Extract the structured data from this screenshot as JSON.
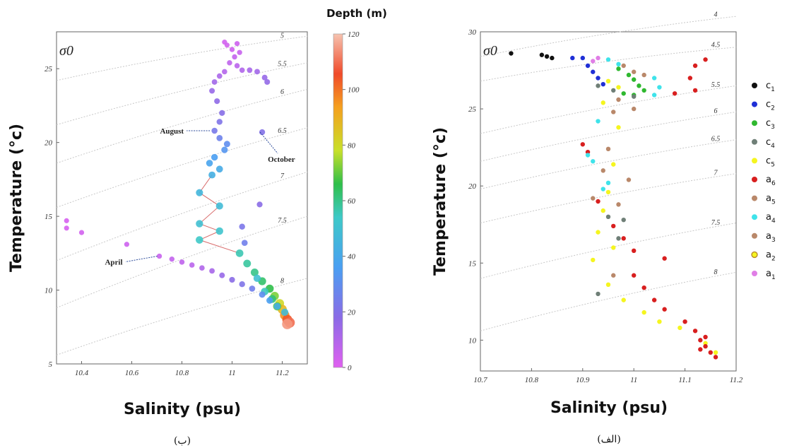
{
  "chart_data": [
    {
      "type": "scatter",
      "panel_caption": "(ب)",
      "xlabel": "Salinity (psu)",
      "ylabel": "Temperature (°c)",
      "sigma_label": "σ0",
      "xlim": [
        10.3,
        11.3
      ],
      "ylim": [
        5,
        27.5
      ],
      "x_ticks": [
        10.4,
        10.6,
        10.8,
        11,
        11.2
      ],
      "y_ticks": [
        5,
        10,
        15,
        20,
        25
      ],
      "colorbar": {
        "title": "Depth (m)",
        "min": 0,
        "max": 120,
        "ticks": [
          0,
          20,
          40,
          60,
          80,
          100,
          120
        ]
      },
      "isopycnals": [
        {
          "label": "5",
          "y_at_left": 24.2,
          "y_at_right": 27.2
        },
        {
          "label": "5.5",
          "y_at_left": 21.2,
          "y_at_right": 25.4
        },
        {
          "label": "6",
          "y_at_left": 18.6,
          "y_at_right": 23.6
        },
        {
          "label": "6.5",
          "y_at_left": 15.6,
          "y_at_right": 21.0
        },
        {
          "label": "7",
          "y_at_left": 12.0,
          "y_at_right": 18.0
        },
        {
          "label": "7.5",
          "y_at_left": 8.8,
          "y_at_right": 15.0
        },
        {
          "label": "8",
          "y_at_left": 5.6,
          "y_at_right": 10.8
        }
      ],
      "annotations": [
        {
          "text": "August",
          "x": 10.92,
          "y": 20.8
        },
        {
          "text": "October",
          "x": 11.12,
          "y": 20.7
        },
        {
          "text": "April",
          "x": 10.71,
          "y": 12.3
        }
      ],
      "points": [
        {
          "x": 10.97,
          "y": 26.8,
          "d": 3
        },
        {
          "x": 10.98,
          "y": 26.6,
          "d": 3
        },
        {
          "x": 11.0,
          "y": 26.3,
          "d": 4
        },
        {
          "x": 11.02,
          "y": 26.7,
          "d": 4
        },
        {
          "x": 11.03,
          "y": 26.1,
          "d": 5
        },
        {
          "x": 11.01,
          "y": 25.8,
          "d": 6
        },
        {
          "x": 10.99,
          "y": 25.4,
          "d": 7
        },
        {
          "x": 11.02,
          "y": 25.2,
          "d": 8
        },
        {
          "x": 11.04,
          "y": 24.9,
          "d": 10
        },
        {
          "x": 11.07,
          "y": 24.9,
          "d": 12
        },
        {
          "x": 11.1,
          "y": 24.8,
          "d": 13
        },
        {
          "x": 11.13,
          "y": 24.4,
          "d": 15
        },
        {
          "x": 11.14,
          "y": 24.1,
          "d": 16
        },
        {
          "x": 10.97,
          "y": 24.8,
          "d": 9
        },
        {
          "x": 10.95,
          "y": 24.5,
          "d": 11
        },
        {
          "x": 10.93,
          "y": 24.1,
          "d": 13
        },
        {
          "x": 10.92,
          "y": 23.5,
          "d": 15
        },
        {
          "x": 10.94,
          "y": 22.8,
          "d": 17
        },
        {
          "x": 10.96,
          "y": 22.0,
          "d": 19
        },
        {
          "x": 10.95,
          "y": 21.4,
          "d": 21
        },
        {
          "x": 10.93,
          "y": 20.8,
          "d": 23
        },
        {
          "x": 10.95,
          "y": 20.3,
          "d": 26
        },
        {
          "x": 10.98,
          "y": 19.9,
          "d": 30
        },
        {
          "x": 10.97,
          "y": 19.5,
          "d": 33
        },
        {
          "x": 10.93,
          "y": 19.0,
          "d": 36
        },
        {
          "x": 10.91,
          "y": 18.6,
          "d": 38
        },
        {
          "x": 10.95,
          "y": 18.2,
          "d": 41
        },
        {
          "x": 10.92,
          "y": 17.8,
          "d": 43
        },
        {
          "x": 10.87,
          "y": 16.6,
          "d": 46
        },
        {
          "x": 10.95,
          "y": 15.7,
          "d": 48
        },
        {
          "x": 10.87,
          "y": 14.5,
          "d": 50
        },
        {
          "x": 10.95,
          "y": 14.0,
          "d": 52
        },
        {
          "x": 10.87,
          "y": 13.4,
          "d": 54
        },
        {
          "x": 11.03,
          "y": 12.5,
          "d": 56
        },
        {
          "x": 11.06,
          "y": 11.8,
          "d": 58
        },
        {
          "x": 11.09,
          "y": 11.2,
          "d": 60
        },
        {
          "x": 11.12,
          "y": 10.6,
          "d": 63
        },
        {
          "x": 11.15,
          "y": 10.1,
          "d": 66
        },
        {
          "x": 11.17,
          "y": 9.6,
          "d": 72
        },
        {
          "x": 11.19,
          "y": 9.1,
          "d": 80
        },
        {
          "x": 11.2,
          "y": 8.7,
          "d": 88
        },
        {
          "x": 11.21,
          "y": 8.3,
          "d": 96
        },
        {
          "x": 11.22,
          "y": 8.0,
          "d": 104
        },
        {
          "x": 11.23,
          "y": 7.8,
          "d": 110
        },
        {
          "x": 11.22,
          "y": 7.7,
          "d": 115
        },
        {
          "x": 11.1,
          "y": 10.8,
          "d": 50
        },
        {
          "x": 11.13,
          "y": 9.9,
          "d": 55
        },
        {
          "x": 11.16,
          "y": 9.4,
          "d": 62
        },
        {
          "x": 11.18,
          "y": 8.9,
          "d": 70
        },
        {
          "x": 11.05,
          "y": 13.2,
          "d": 25
        },
        {
          "x": 11.04,
          "y": 14.3,
          "d": 22
        },
        {
          "x": 11.11,
          "y": 15.8,
          "d": 18
        },
        {
          "x": 11.12,
          "y": 20.7,
          "d": 20
        },
        {
          "x": 10.34,
          "y": 14.7,
          "d": 2
        },
        {
          "x": 10.34,
          "y": 14.2,
          "d": 2
        },
        {
          "x": 10.4,
          "y": 13.9,
          "d": 3
        },
        {
          "x": 10.58,
          "y": 13.1,
          "d": 4
        },
        {
          "x": 10.71,
          "y": 12.3,
          "d": 5
        },
        {
          "x": 10.76,
          "y": 12.1,
          "d": 6
        },
        {
          "x": 10.8,
          "y": 11.9,
          "d": 7
        },
        {
          "x": 10.84,
          "y": 11.7,
          "d": 8
        },
        {
          "x": 10.88,
          "y": 11.5,
          "d": 10
        },
        {
          "x": 10.92,
          "y": 11.3,
          "d": 12
        },
        {
          "x": 10.96,
          "y": 11.0,
          "d": 15
        },
        {
          "x": 11.0,
          "y": 10.7,
          "d": 18
        },
        {
          "x": 11.04,
          "y": 10.4,
          "d": 21
        },
        {
          "x": 11.08,
          "y": 10.1,
          "d": 25
        },
        {
          "x": 11.12,
          "y": 9.7,
          "d": 30
        },
        {
          "x": 11.15,
          "y": 9.3,
          "d": 36
        },
        {
          "x": 11.18,
          "y": 8.9,
          "d": 42
        },
        {
          "x": 11.21,
          "y": 8.5,
          "d": 48
        }
      ],
      "line_path": [
        {
          "x": 10.92,
          "y": 17.8
        },
        {
          "x": 10.87,
          "y": 16.6
        },
        {
          "x": 10.95,
          "y": 15.7
        },
        {
          "x": 10.87,
          "y": 14.5
        },
        {
          "x": 10.95,
          "y": 14.0
        },
        {
          "x": 10.87,
          "y": 13.4
        },
        {
          "x": 11.03,
          "y": 12.5
        }
      ]
    },
    {
      "type": "scatter",
      "panel_caption": "(الف)",
      "xlabel": "Salinity (psu)",
      "ylabel": "Temperature (°c)",
      "sigma_label": "σ0",
      "xlim": [
        10.7,
        11.2
      ],
      "ylim": [
        8,
        30
      ],
      "x_ticks": [
        10.7,
        10.8,
        10.9,
        11,
        11.1,
        11.2
      ],
      "y_ticks": [
        10,
        15,
        20,
        25,
        30
      ],
      "isopycnals": [
        {
          "label": "4",
          "y_at_left": 28.4,
          "y_at_right": 31.0
        },
        {
          "label": "4.5",
          "y_at_left": 26.8,
          "y_at_right": 29.0
        },
        {
          "label": "5.5",
          "y_at_left": 23.4,
          "y_at_right": 26.5
        },
        {
          "label": "6",
          "y_at_left": 21.6,
          "y_at_right": 24.8
        },
        {
          "label": "6.5",
          "y_at_left": 19.8,
          "y_at_right": 23.0
        },
        {
          "label": "7",
          "y_at_left": 17.6,
          "y_at_right": 20.8
        },
        {
          "label": "7.5",
          "y_at_left": 14.0,
          "y_at_right": 17.6
        },
        {
          "label": "8",
          "y_at_left": 10.6,
          "y_at_right": 14.4
        }
      ],
      "legend": [
        {
          "label": "c",
          "sub": "1",
          "color": "#111111",
          "hollow": false
        },
        {
          "label": "c",
          "sub": "2",
          "color": "#1f2fd6",
          "hollow": false
        },
        {
          "label": "c",
          "sub": "3",
          "color": "#2fb82f",
          "hollow": false
        },
        {
          "label": "c",
          "sub": "4",
          "color": "#6f7f77",
          "hollow": false
        },
        {
          "label": "c",
          "sub": "5",
          "color": "#f5f51f",
          "hollow": false
        },
        {
          "label": "a",
          "sub": "6",
          "color": "#d81f1f",
          "hollow": false
        },
        {
          "label": "a",
          "sub": "5",
          "color": "#b9886a",
          "hollow": false
        },
        {
          "label": "a",
          "sub": "4",
          "color": "#3fe3ea",
          "hollow": false
        },
        {
          "label": "a",
          "sub": "3",
          "color": "#b9886a",
          "hollow": false
        },
        {
          "label": "a",
          "sub": "2",
          "color": "#e8e81f",
          "hollow": true
        },
        {
          "label": "a",
          "sub": "1",
          "color": "#e07ee6",
          "hollow": false
        }
      ],
      "groups": [
        {
          "color": "#111111",
          "pts": [
            [
              10.76,
              28.6
            ],
            [
              10.82,
              28.5
            ],
            [
              10.83,
              28.4
            ],
            [
              10.84,
              28.3
            ]
          ]
        },
        {
          "color": "#1f2fd6",
          "pts": [
            [
              10.88,
              28.3
            ],
            [
              10.9,
              28.3
            ],
            [
              10.91,
              27.8
            ],
            [
              10.92,
              27.4
            ],
            [
              10.93,
              27.0
            ],
            [
              10.94,
              26.6
            ]
          ]
        },
        {
          "color": "#2fb82f",
          "pts": [
            [
              10.97,
              27.6
            ],
            [
              10.99,
              27.2
            ],
            [
              11.0,
              26.9
            ],
            [
              11.01,
              26.5
            ],
            [
              10.98,
              26.0
            ],
            [
              11.02,
              26.2
            ],
            [
              11.0,
              25.9
            ]
          ]
        },
        {
          "color": "#6f7f77",
          "pts": [
            [
              10.93,
              26.5
            ],
            [
              10.96,
              26.2
            ],
            [
              11.0,
              25.8
            ],
            [
              10.95,
              18.0
            ],
            [
              10.98,
              17.8
            ],
            [
              10.97,
              16.6
            ],
            [
              10.93,
              13.0
            ]
          ]
        },
        {
          "color": "#f5f51f",
          "pts": [
            [
              10.95,
              26.8
            ],
            [
              10.97,
              26.4
            ],
            [
              10.94,
              25.4
            ],
            [
              10.97,
              23.8
            ],
            [
              10.96,
              21.4
            ],
            [
              10.95,
              19.6
            ],
            [
              10.94,
              18.4
            ],
            [
              10.93,
              17.0
            ],
            [
              10.96,
              16.0
            ],
            [
              10.92,
              15.2
            ],
            [
              10.95,
              13.6
            ],
            [
              10.98,
              12.6
            ],
            [
              11.02,
              11.8
            ],
            [
              11.05,
              11.2
            ],
            [
              11.09,
              10.8
            ],
            [
              11.14,
              9.8
            ],
            [
              11.16,
              9.2
            ]
          ]
        },
        {
          "color": "#d81f1f",
          "pts": [
            [
              11.14,
              28.2
            ],
            [
              11.12,
              27.8
            ],
            [
              11.11,
              27.0
            ],
            [
              11.08,
              26.0
            ],
            [
              11.12,
              26.2
            ],
            [
              10.9,
              22.7
            ],
            [
              10.91,
              22.2
            ],
            [
              10.93,
              19.0
            ],
            [
              10.96,
              17.4
            ],
            [
              10.98,
              16.6
            ],
            [
              11.0,
              15.8
            ],
            [
              11.06,
              15.3
            ],
            [
              11.0,
              14.2
            ],
            [
              11.02,
              13.4
            ],
            [
              11.04,
              12.6
            ],
            [
              11.06,
              12.0
            ],
            [
              11.1,
              11.2
            ],
            [
              11.12,
              10.6
            ],
            [
              11.13,
              10.0
            ],
            [
              11.14,
              9.6
            ],
            [
              11.15,
              9.2
            ],
            [
              11.16,
              8.9
            ],
            [
              11.14,
              10.2
            ],
            [
              11.13,
              9.4
            ]
          ]
        },
        {
          "color": "#b9886a",
          "pts": [
            [
              10.98,
              27.8
            ],
            [
              11.0,
              27.4
            ],
            [
              11.02,
              27.2
            ],
            [
              10.97,
              25.6
            ],
            [
              10.96,
              24.8
            ],
            [
              10.95,
              22.4
            ],
            [
              10.94,
              21.0
            ],
            [
              10.92,
              19.2
            ],
            [
              10.97,
              18.8
            ],
            [
              10.99,
              20.4
            ],
            [
              10.96,
              14.2
            ],
            [
              11.0,
              25.0
            ]
          ]
        },
        {
          "color": "#3fe3ea",
          "pts": [
            [
              10.95,
              28.2
            ],
            [
              10.97,
              27.9
            ],
            [
              11.04,
              27.0
            ],
            [
              11.05,
              26.4
            ],
            [
              11.04,
              25.9
            ],
            [
              10.93,
              24.2
            ],
            [
              10.91,
              22.0
            ],
            [
              10.92,
              21.6
            ],
            [
              10.95,
              20.2
            ],
            [
              10.94,
              19.8
            ]
          ]
        },
        {
          "color": "#e07ee6",
          "pts": [
            [
              10.93,
              28.3
            ],
            [
              10.92,
              28.1
            ]
          ]
        }
      ]
    }
  ]
}
